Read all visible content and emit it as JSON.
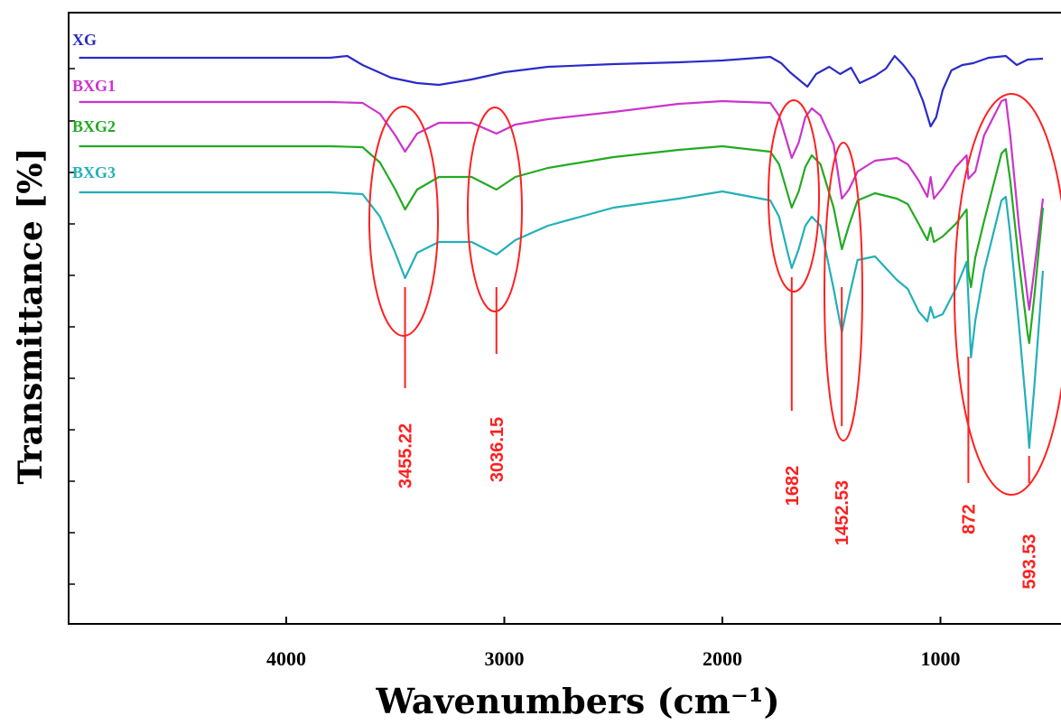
{
  "chart_data": {
    "type": "line",
    "xlabel": "Wavenumbers (cm⁻¹)",
    "ylabel": "Transmittance [%]",
    "x_reversed": true,
    "xlim": [
      4950,
      530
    ],
    "xticks": [
      4000,
      3000,
      2000,
      1000
    ],
    "xtick_labels": [
      "4000",
      "3000",
      "2000",
      "1000"
    ],
    "grid": false,
    "series": [
      {
        "name": "XG",
        "color": "#2b2bc8",
        "points": [
          [
            4950,
            64
          ],
          [
            3800,
            64
          ],
          [
            3720,
            62
          ],
          [
            3650,
            72
          ],
          [
            3520,
            86
          ],
          [
            3400,
            92
          ],
          [
            3300,
            94
          ],
          [
            3150,
            88
          ],
          [
            3000,
            80
          ],
          [
            2800,
            74
          ],
          [
            2500,
            71
          ],
          [
            2200,
            69
          ],
          [
            2000,
            67
          ],
          [
            1780,
            63
          ],
          [
            1730,
            70
          ],
          [
            1690,
            80
          ],
          [
            1650,
            88
          ],
          [
            1610,
            96
          ],
          [
            1570,
            82
          ],
          [
            1510,
            74
          ],
          [
            1460,
            82
          ],
          [
            1410,
            75
          ],
          [
            1370,
            92
          ],
          [
            1300,
            84
          ],
          [
            1250,
            76
          ],
          [
            1210,
            62
          ],
          [
            1170,
            72
          ],
          [
            1120,
            88
          ],
          [
            1080,
            112
          ],
          [
            1045,
            140
          ],
          [
            1020,
            130
          ],
          [
            990,
            100
          ],
          [
            950,
            78
          ],
          [
            900,
            72
          ],
          [
            850,
            70
          ],
          [
            780,
            64
          ],
          [
            700,
            62
          ],
          [
            650,
            72
          ],
          [
            600,
            66
          ],
          [
            530,
            65
          ]
        ]
      },
      {
        "name": "BXG1",
        "color": "#cc33cc",
        "points": [
          [
            4950,
            113
          ],
          [
            3800,
            113
          ],
          [
            3650,
            114
          ],
          [
            3570,
            126
          ],
          [
            3500,
            150
          ],
          [
            3455,
            168
          ],
          [
            3400,
            148
          ],
          [
            3300,
            136
          ],
          [
            3150,
            136
          ],
          [
            3036,
            148
          ],
          [
            2950,
            138
          ],
          [
            2800,
            132
          ],
          [
            2500,
            124
          ],
          [
            2200,
            115
          ],
          [
            2000,
            112
          ],
          [
            1780,
            114
          ],
          [
            1740,
            128
          ],
          [
            1700,
            160
          ],
          [
            1682,
            175
          ],
          [
            1650,
            158
          ],
          [
            1620,
            130
          ],
          [
            1590,
            120
          ],
          [
            1550,
            128
          ],
          [
            1490,
            160
          ],
          [
            1452,
            220
          ],
          [
            1420,
            210
          ],
          [
            1380,
            190
          ],
          [
            1300,
            178
          ],
          [
            1200,
            175
          ],
          [
            1150,
            182
          ],
          [
            1100,
            200
          ],
          [
            1060,
            218
          ],
          [
            1045,
            196
          ],
          [
            1030,
            220
          ],
          [
            990,
            208
          ],
          [
            930,
            185
          ],
          [
            880,
            172
          ],
          [
            872,
            198
          ],
          [
            840,
            190
          ],
          [
            800,
            150
          ],
          [
            720,
            112
          ],
          [
            700,
            110
          ],
          [
            680,
            150
          ],
          [
            640,
            250
          ],
          [
            600,
            330
          ],
          [
            593,
            343
          ],
          [
            570,
            300
          ],
          [
            530,
            220
          ]
        ]
      },
      {
        "name": "BXG2",
        "color": "#22aa22",
        "points": [
          [
            4950,
            162
          ],
          [
            3800,
            162
          ],
          [
            3650,
            163
          ],
          [
            3570,
            180
          ],
          [
            3500,
            210
          ],
          [
            3455,
            232
          ],
          [
            3400,
            210
          ],
          [
            3300,
            196
          ],
          [
            3150,
            196
          ],
          [
            3036,
            210
          ],
          [
            2950,
            196
          ],
          [
            2800,
            186
          ],
          [
            2500,
            174
          ],
          [
            2200,
            166
          ],
          [
            2000,
            162
          ],
          [
            1780,
            168
          ],
          [
            1740,
            182
          ],
          [
            1700,
            215
          ],
          [
            1682,
            230
          ],
          [
            1650,
            212
          ],
          [
            1620,
            185
          ],
          [
            1590,
            172
          ],
          [
            1550,
            182
          ],
          [
            1490,
            230
          ],
          [
            1452,
            276
          ],
          [
            1420,
            250
          ],
          [
            1380,
            222
          ],
          [
            1300,
            214
          ],
          [
            1200,
            220
          ],
          [
            1150,
            226
          ],
          [
            1100,
            248
          ],
          [
            1060,
            266
          ],
          [
            1045,
            252
          ],
          [
            1030,
            268
          ],
          [
            990,
            262
          ],
          [
            930,
            248
          ],
          [
            880,
            232
          ],
          [
            872,
            300
          ],
          [
            860,
            318
          ],
          [
            840,
            285
          ],
          [
            800,
            245
          ],
          [
            720,
            170
          ],
          [
            700,
            165
          ],
          [
            680,
            200
          ],
          [
            640,
            290
          ],
          [
            600,
            370
          ],
          [
            593,
            380
          ],
          [
            570,
            330
          ],
          [
            530,
            230
          ]
        ]
      },
      {
        "name": "BXG3",
        "color": "#22b0b8",
        "points": [
          [
            4950,
            213
          ],
          [
            3800,
            213
          ],
          [
            3650,
            215
          ],
          [
            3570,
            240
          ],
          [
            3500,
            280
          ],
          [
            3455,
            308
          ],
          [
            3400,
            280
          ],
          [
            3300,
            268
          ],
          [
            3150,
            268
          ],
          [
            3036,
            282
          ],
          [
            2950,
            266
          ],
          [
            2800,
            250
          ],
          [
            2500,
            230
          ],
          [
            2200,
            220
          ],
          [
            2000,
            212
          ],
          [
            1780,
            222
          ],
          [
            1740,
            240
          ],
          [
            1700,
            280
          ],
          [
            1682,
            297
          ],
          [
            1650,
            276
          ],
          [
            1620,
            250
          ],
          [
            1590,
            240
          ],
          [
            1550,
            250
          ],
          [
            1490,
            320
          ],
          [
            1452,
            368
          ],
          [
            1420,
            330
          ],
          [
            1380,
            288
          ],
          [
            1300,
            284
          ],
          [
            1200,
            310
          ],
          [
            1150,
            320
          ],
          [
            1100,
            345
          ],
          [
            1060,
            356
          ],
          [
            1045,
            340
          ],
          [
            1030,
            352
          ],
          [
            990,
            348
          ],
          [
            930,
            320
          ],
          [
            880,
            290
          ],
          [
            872,
            330
          ],
          [
            860,
            396
          ],
          [
            840,
            355
          ],
          [
            800,
            300
          ],
          [
            720,
            222
          ],
          [
            700,
            218
          ],
          [
            680,
            260
          ],
          [
            640,
            360
          ],
          [
            600,
            470
          ],
          [
            593,
            496
          ],
          [
            570,
            430
          ],
          [
            530,
            300
          ]
        ]
      }
    ],
    "annotations": [
      {
        "label": "3455.22",
        "x": 3455.22
      },
      {
        "label": "3036.15",
        "x": 3036.15
      },
      {
        "label": "1682",
        "x": 1682
      },
      {
        "label": "1452.53",
        "x": 1452.53
      },
      {
        "label": "872",
        "x": 872
      },
      {
        "label": "593.53",
        "x": 593.53
      }
    ]
  }
}
